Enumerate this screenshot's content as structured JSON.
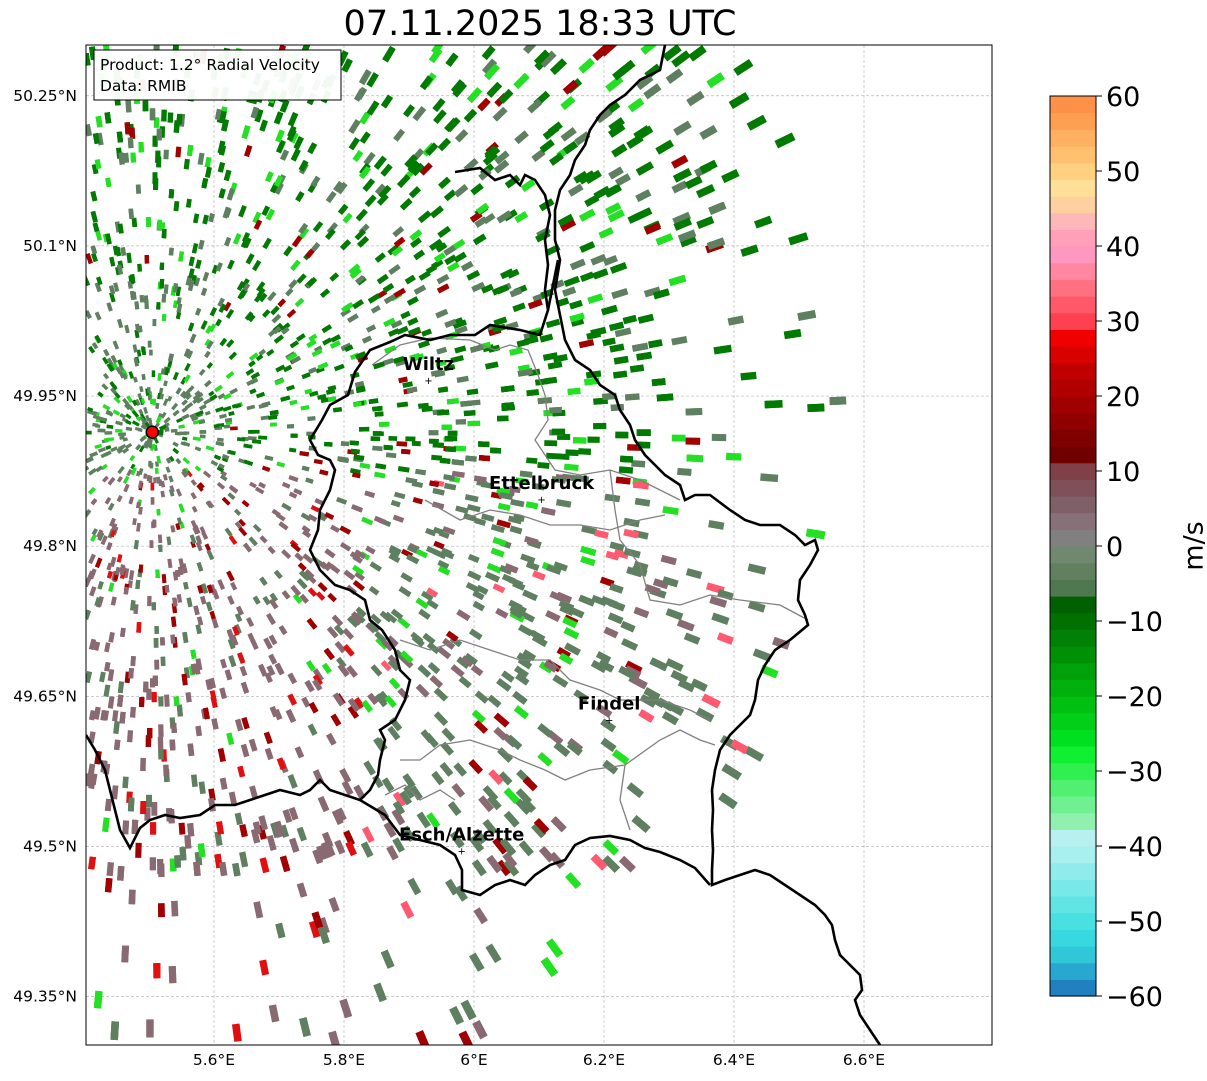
{
  "title": "07.11.2025 18:33 UTC",
  "info_box": {
    "product": "Product: 1.2° Radial Velocity",
    "data_source": "Data: RMIB"
  },
  "map": {
    "lon_range": [
      5.4,
      6.8
    ],
    "lat_range": [
      49.3,
      50.3
    ],
    "lat_ticks": [
      {
        "value": 50.25,
        "label": "50.25°N"
      },
      {
        "value": 50.1,
        "label": "50.1°N"
      },
      {
        "value": 49.95,
        "label": "49.95°N"
      },
      {
        "value": 49.8,
        "label": "49.8°N"
      },
      {
        "value": 49.65,
        "label": "49.65°N"
      },
      {
        "value": 49.5,
        "label": "49.5°N"
      },
      {
        "value": 49.35,
        "label": "49.35°N"
      }
    ],
    "lon_ticks": [
      {
        "value": 5.6,
        "label": "5.6°E"
      },
      {
        "value": 5.8,
        "label": "5.8°E"
      },
      {
        "value": 6.0,
        "label": "6°E"
      },
      {
        "value": 6.2,
        "label": "6.2°E"
      },
      {
        "value": 6.4,
        "label": "6.4°E"
      },
      {
        "value": 6.6,
        "label": "6.6°E"
      }
    ],
    "grid": true,
    "radar_site": {
      "lon": 5.505,
      "lat": 49.914,
      "color": "#ff0000"
    },
    "cities": [
      {
        "name": "Wiltz",
        "lon": 5.93,
        "lat": 49.966
      },
      {
        "name": "Ettelbruck",
        "lon": 6.104,
        "lat": 49.847
      },
      {
        "name": "Findel",
        "lon": 6.208,
        "lat": 49.627
      },
      {
        "name": "Esch/Alzette",
        "lon": 5.981,
        "lat": 49.496
      }
    ]
  },
  "colorbar": {
    "label": "m/s",
    "min": -60,
    "max": 60,
    "ticks": [
      {
        "value": 60,
        "label": "60"
      },
      {
        "value": 50,
        "label": "50"
      },
      {
        "value": 40,
        "label": "40"
      },
      {
        "value": 30,
        "label": "30"
      },
      {
        "value": 20,
        "label": "20"
      },
      {
        "value": 10,
        "label": "10"
      },
      {
        "value": 0,
        "label": "0"
      },
      {
        "value": -10,
        "label": "−10"
      },
      {
        "value": -20,
        "label": "−20"
      },
      {
        "value": -30,
        "label": "−30"
      },
      {
        "value": -40,
        "label": "−40"
      },
      {
        "value": -50,
        "label": "−50"
      },
      {
        "value": -60,
        "label": "−60"
      }
    ],
    "colors": [
      "#2080c0",
      "#28a8d0",
      "#30c8d8",
      "#38d8e0",
      "#48e0e0",
      "#60e4e4",
      "#78e8e8",
      "#90ecec",
      "#a8f0f0",
      "#b8f0f0",
      "#90f0b0",
      "#70f090",
      "#50f070",
      "#30f050",
      "#10f030",
      "#00e020",
      "#00d018",
      "#00c010",
      "#00b00c",
      "#00a008",
      "#009006",
      "#008004",
      "#007003",
      "#006002",
      "#507850",
      "#608060",
      "#708870",
      "#808080",
      "#887078",
      "#806068",
      "#805058",
      "#804048",
      "#700000",
      "#800000",
      "#900000",
      "#a00000",
      "#b00000",
      "#c00000",
      "#d80000",
      "#f00000",
      "#ff4050",
      "#ff5868",
      "#ff7080",
      "#ff88a0",
      "#ff98c0",
      "#ffa0b8",
      "#ffb8b8",
      "#ffd0a0",
      "#ffe098",
      "#ffd080",
      "#ffc070",
      "#ffb060",
      "#ffa050",
      "#ff9048"
    ]
  },
  "velocity_colors": {
    "dark_green": "#007a00",
    "mid_green": "#5f8060",
    "bright_green": "#22e022",
    "gray_pink": "#8a6a72",
    "dark_red": "#a00000",
    "red": "#e01010",
    "pink": "#ff5a70"
  }
}
